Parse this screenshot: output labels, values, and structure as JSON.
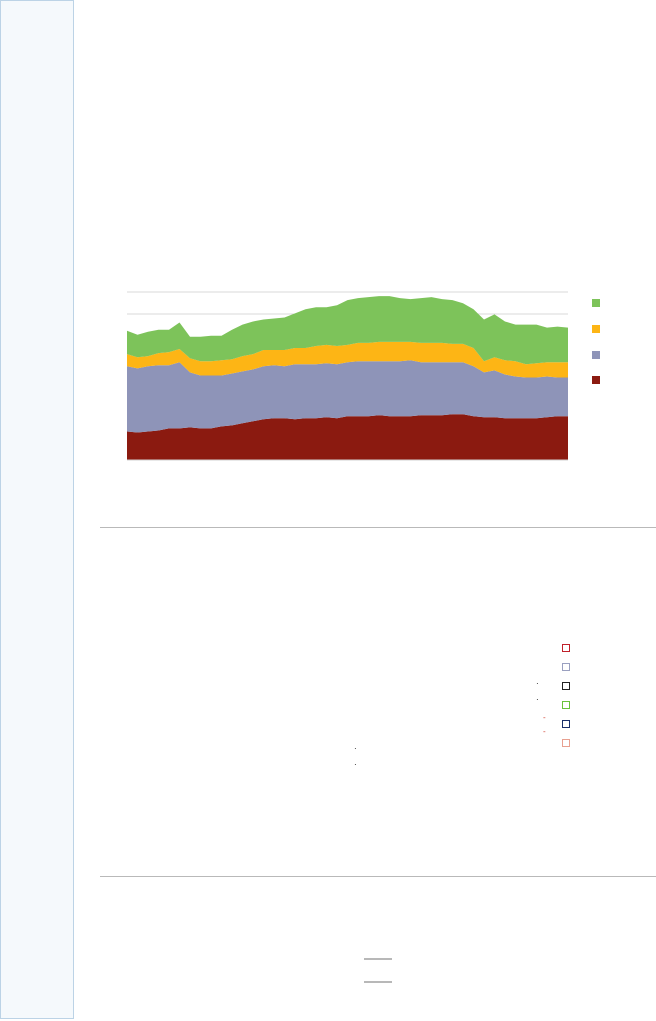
{
  "chart_data": {
    "type": "area",
    "stacked": true,
    "title": "",
    "xlabel": "",
    "ylabel": "",
    "grid": true,
    "legend_position": "right",
    "series": [
      {
        "color": "#8b1a10",
        "values": [
          28,
          27,
          28,
          29,
          31,
          31,
          32,
          31,
          31,
          33,
          34,
          36,
          38,
          40,
          41,
          41,
          40,
          41,
          41,
          42,
          41,
          43,
          43,
          43,
          44,
          43,
          43,
          43,
          44,
          44,
          44,
          45,
          45,
          43,
          42,
          42,
          41,
          41,
          41,
          41,
          42,
          43,
          43
        ]
      },
      {
        "color": "#8e94b8",
        "values": [
          64,
          63,
          64,
          64,
          62,
          65,
          54,
          52,
          52,
          50,
          51,
          51,
          51,
          52,
          52,
          51,
          54,
          53,
          53,
          53,
          53,
          53,
          54,
          54,
          53,
          54,
          54,
          55,
          52,
          52,
          52,
          51,
          51,
          49,
          44,
          46,
          43,
          41,
          40,
          40,
          40,
          38,
          38
        ]
      },
      {
        "color": "#fdb515",
        "values": [
          12,
          11,
          10,
          12,
          13,
          13,
          14,
          14,
          14,
          15,
          14,
          15,
          15,
          16,
          15,
          16,
          16,
          16,
          18,
          18,
          18,
          17,
          18,
          18,
          19,
          19,
          19,
          18,
          19,
          19,
          19,
          18,
          18,
          18,
          11,
          13,
          14,
          15,
          13,
          14,
          14,
          15,
          15
        ]
      },
      {
        "color": "#7dc35a",
        "values": [
          23,
          22,
          24,
          23,
          22,
          26,
          21,
          24,
          25,
          24,
          29,
          31,
          32,
          30,
          31,
          32,
          34,
          38,
          38,
          37,
          40,
          44,
          44,
          45,
          45,
          45,
          43,
          42,
          44,
          45,
          43,
          43,
          40,
          38,
          41,
          42,
          38,
          36,
          39,
          38,
          34,
          35,
          34
        ]
      }
    ]
  },
  "legend_colors": [
    "#7dc35a",
    "#fdb515",
    "#8e94b8",
    "#8b1a10"
  ],
  "box_legend_colors": [
    "#c0202a",
    "#9aa0c0",
    "#222222",
    "#6ac23a",
    "#1a2f6a",
    "#e8a090"
  ]
}
